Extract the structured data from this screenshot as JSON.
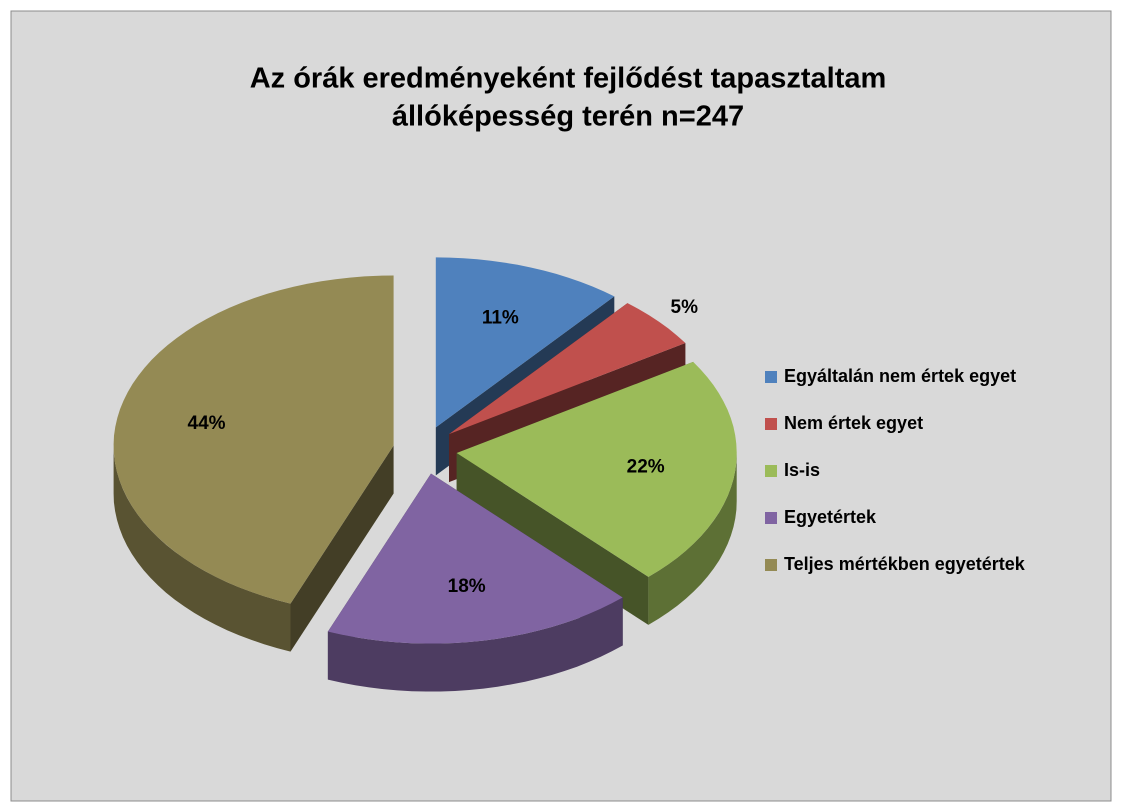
{
  "chart_data": {
    "type": "pie",
    "title": [
      "Az órák eredményeként fejlődést tapasztaltam",
      "állóképesség terén n=247"
    ],
    "categories": [
      "Egyáltalán nem értek egyet",
      "Nem értek egyet",
      "Is-is",
      "Egyetértek",
      "Teljes mértékben egyetértek"
    ],
    "values": [
      11,
      5,
      22,
      18,
      44
    ],
    "value_labels": [
      "11%",
      "5%",
      "22%",
      "18%",
      "44%"
    ],
    "colors": [
      "#4f81bd",
      "#c0504d",
      "#9bbb59",
      "#8064a2",
      "#948a54"
    ],
    "legend": "right"
  }
}
